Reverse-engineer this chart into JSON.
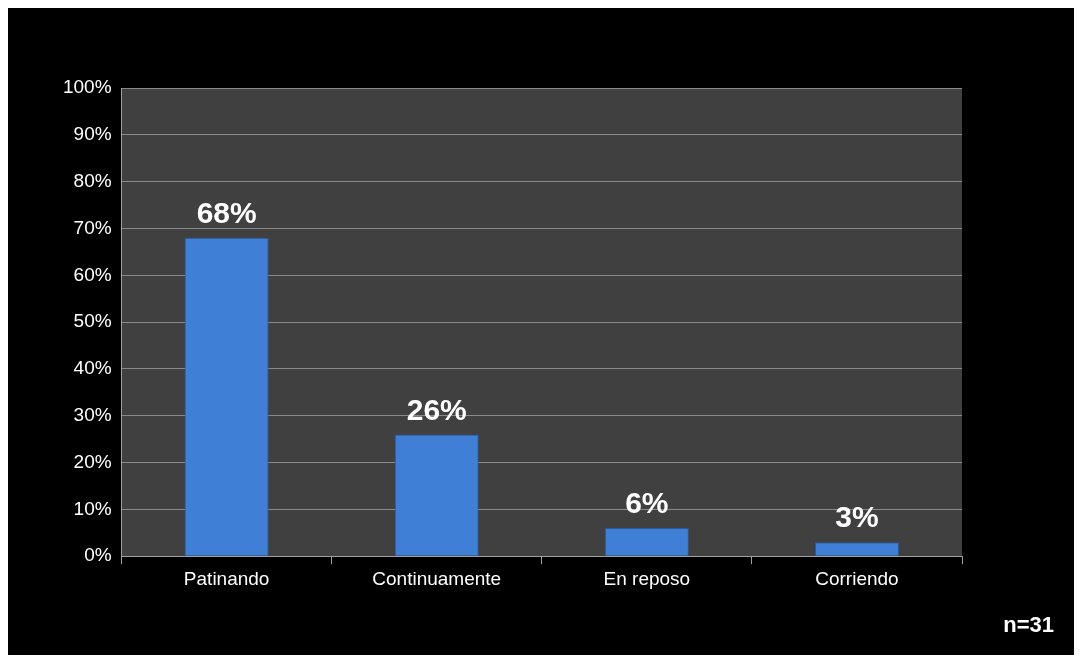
{
  "chart_data": {
    "type": "bar",
    "categories": [
      "Patinando",
      "Continuamente",
      "En reposo",
      "Corriendo"
    ],
    "values": [
      68,
      26,
      6,
      3
    ],
    "value_labels": [
      "68%",
      "26%",
      "6%",
      "3%"
    ],
    "color": "#3f7fd6",
    "ylim": [
      0,
      100
    ],
    "yticks": [
      {
        "value": 0,
        "label": "0%"
      },
      {
        "value": 10,
        "label": "10%"
      },
      {
        "value": 20,
        "label": "20%"
      },
      {
        "value": 30,
        "label": "30%"
      },
      {
        "value": 40,
        "label": "40%"
      },
      {
        "value": 50,
        "label": "50%"
      },
      {
        "value": 60,
        "label": "60%"
      },
      {
        "value": 70,
        "label": "70%"
      },
      {
        "value": 80,
        "label": "80%"
      },
      {
        "value": 90,
        "label": "90%"
      },
      {
        "value": 100,
        "label": "100%"
      }
    ],
    "grid": "y",
    "legend": false,
    "annotations": [
      "n=31"
    ]
  }
}
